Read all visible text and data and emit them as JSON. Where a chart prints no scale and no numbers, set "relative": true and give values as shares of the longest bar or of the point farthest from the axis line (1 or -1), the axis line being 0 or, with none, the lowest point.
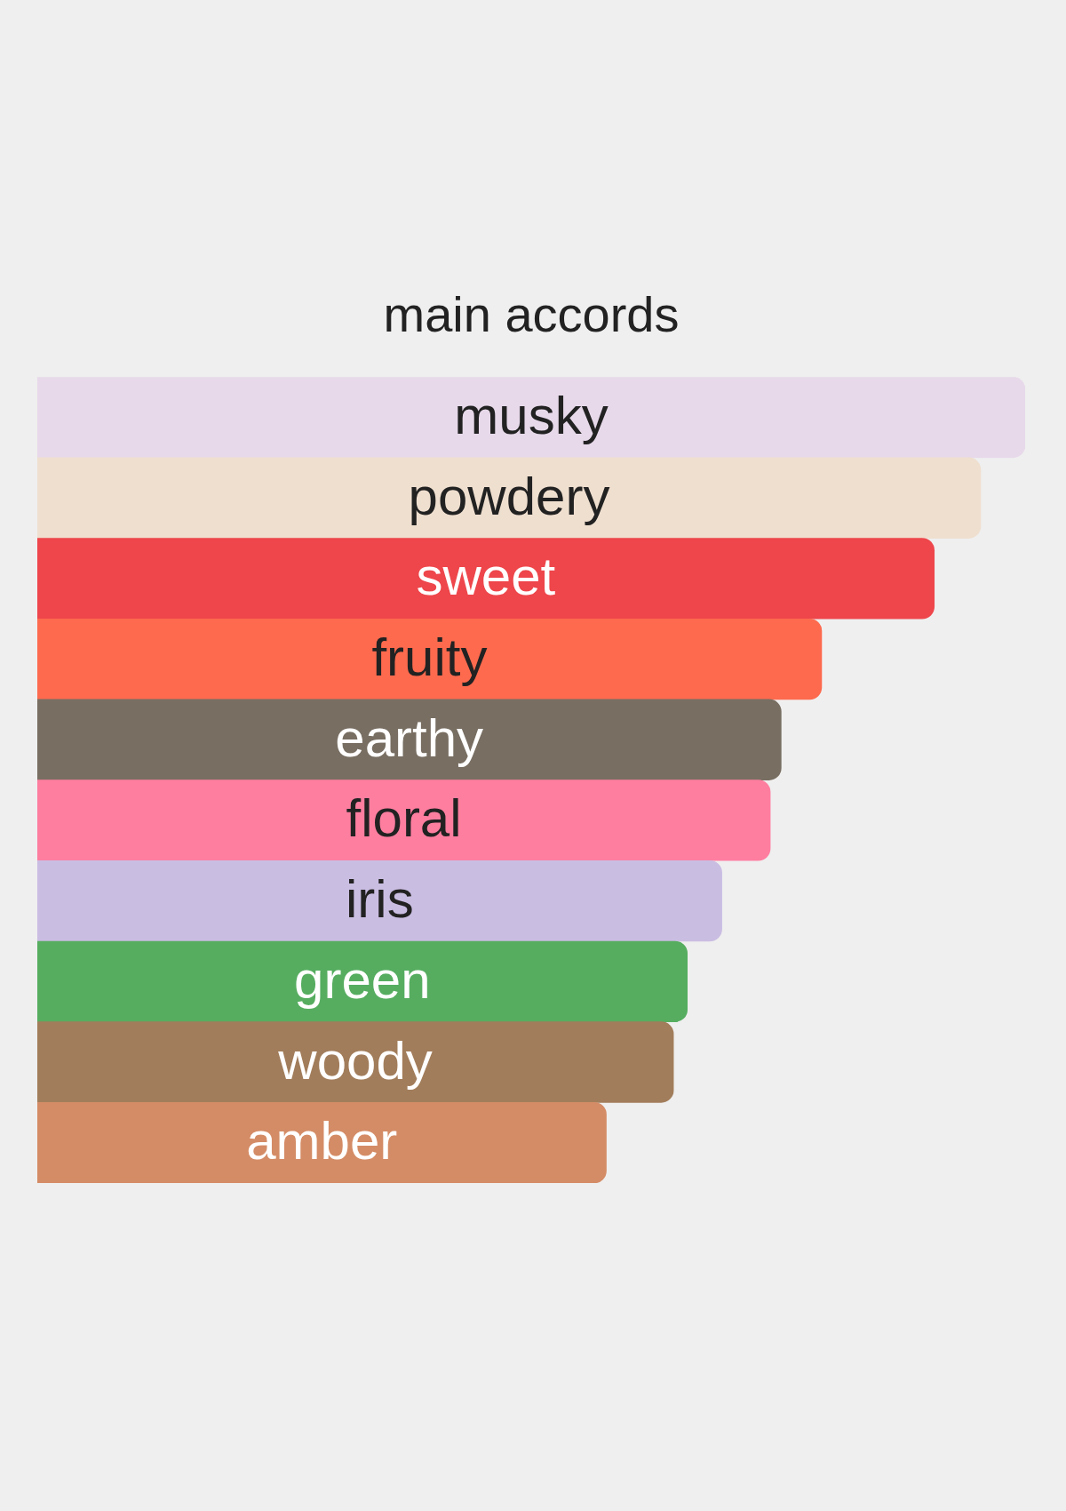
{
  "chart_data": {
    "type": "bar",
    "title": "main accords",
    "orientation": "horizontal",
    "relative": true,
    "categories": [
      "musky",
      "powdery",
      "sweet",
      "fruity",
      "earthy",
      "floral",
      "iris",
      "green",
      "woody",
      "amber"
    ],
    "values": [
      1,
      0.955,
      0.908,
      0.794,
      0.753,
      0.742,
      0.693,
      0.658,
      0.644,
      0.576
    ],
    "colors": [
      "#e7d9ea",
      "#efdfcf",
      "#ee464b",
      "#fd6a4e",
      "#786e62",
      "#fe7ea0",
      "#cabde2",
      "#56ad60",
      "#a27d5b",
      "#d48c66"
    ]
  }
}
